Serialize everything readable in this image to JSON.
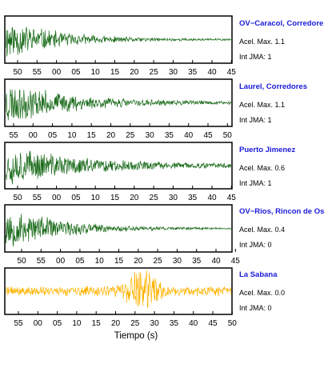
{
  "xlabel": "Tiempo (s)",
  "chart_data": [
    {
      "type": "line",
      "station": "OV−Caracol, Corredore",
      "accel_label": "Acel. Max. 1.1",
      "int_label": "Int JMA: 1",
      "color": "#1a6b1a",
      "tick_labels": [
        "50",
        "55",
        "00",
        "05",
        "10",
        "15",
        "20",
        "25",
        "30",
        "35",
        "40",
        "45"
      ],
      "envelope": {
        "onset_fraction": 0.01,
        "peak_amplitude": 1.0,
        "decay_rate": 4.5,
        "floor": 0.04
      },
      "seed": 11
    },
    {
      "type": "line",
      "station": "Laurel, Corredores",
      "accel_label": "Acel. Max. 1.1",
      "int_label": "Int JMA: 1",
      "color": "#1a6b1a",
      "tick_labels": [
        "55",
        "00",
        "05",
        "10",
        "15",
        "20",
        "25",
        "30",
        "35",
        "40",
        "45",
        "50"
      ],
      "envelope": {
        "onset_fraction": 0.01,
        "peak_amplitude": 1.0,
        "decay_rate": 3.5,
        "floor": 0.05
      },
      "seed": 23
    },
    {
      "type": "line",
      "station": "Puerto Jimenez",
      "accel_label": "Acel. Max. 0.6",
      "int_label": "Int JMA: 1",
      "color": "#1a6b1a",
      "tick_labels": [
        "50",
        "55",
        "00",
        "05",
        "10",
        "15",
        "20",
        "25",
        "30",
        "35",
        "40",
        "45"
      ],
      "envelope": {
        "onset_fraction": 0.01,
        "peak_amplitude": 0.95,
        "decay_rate": 3.0,
        "floor": 0.07
      },
      "seed": 37
    },
    {
      "type": "line",
      "station": "OV−Rios, Rincon de Os",
      "accel_label": "Acel. Max. 0.4",
      "int_label": "Int JMA: 0",
      "color": "#1a6b1a",
      "tick_labels": [
        "50",
        "55",
        "00",
        "05",
        "10",
        "15",
        "20",
        "25",
        "30",
        "35",
        "40",
        "45"
      ],
      "envelope": {
        "onset_fraction": 0.01,
        "peak_amplitude": 1.0,
        "decay_rate": 4.0,
        "floor": 0.03
      },
      "seed": 53
    },
    {
      "type": "line",
      "station": "La Sabana",
      "accel_label": "Acel. Max. 0.0",
      "int_label": "Int JMA: 0",
      "color": "#ffb300",
      "tick_labels": [
        "55",
        "00",
        "05",
        "10",
        "15",
        "20",
        "25",
        "30",
        "35",
        "40",
        "45",
        "50"
      ],
      "envelope": {
        "onset_fraction": 0.0,
        "peak_amplitude": 0.25,
        "decay_rate": 0.0,
        "floor": 0.25,
        "burst_center_fraction": 0.6,
        "burst_amplitude": 1.0
      },
      "seed": 71
    }
  ]
}
